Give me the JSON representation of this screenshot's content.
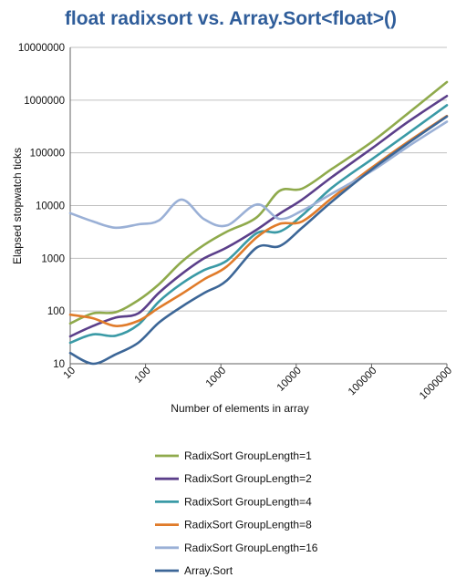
{
  "chart_data": {
    "type": "line",
    "title": "float radixsort vs. Array.Sort<float>()",
    "xlabel": "Number of elements in array",
    "ylabel": "Elapsed stopwatch ticks",
    "x_scale": "log",
    "y_scale": "log",
    "xlim": [
      10,
      1000000
    ],
    "ylim": [
      10,
      10000000
    ],
    "x_ticks": [
      "10",
      "100",
      "1000",
      "10000",
      "100000",
      "1000000"
    ],
    "y_ticks": [
      "10",
      "100",
      "1000",
      "10000",
      "100000",
      "1000000",
      "10000000"
    ],
    "grid": true,
    "legend_position": "bottom",
    "colors": {
      "title": "#2f5d9a",
      "grid": "#c0c0c0",
      "axis": "#606060"
    },
    "x": [
      10,
      20,
      40,
      80,
      150,
      300,
      600,
      1200,
      3000,
      6000,
      12000,
      30000,
      100000,
      300000,
      1000000
    ],
    "series": [
      {
        "name": "RadixSort GroupLength=1",
        "color": "#8faa4c",
        "values": [
          58,
          90,
          95,
          160,
          320,
          850,
          1800,
          3200,
          6000,
          19000,
          21000,
          50000,
          160000,
          550000,
          2200000
        ]
      },
      {
        "name": "RadixSort GroupLength=2",
        "color": "#5b3f8a",
        "values": [
          33,
          52,
          75,
          90,
          220,
          500,
          1000,
          1600,
          3500,
          7000,
          13000,
          35000,
          120000,
          380000,
          1200000
        ]
      },
      {
        "name": "RadixSort GroupLength=4",
        "color": "#3a9aa6",
        "values": [
          25,
          36,
          34,
          55,
          150,
          330,
          600,
          900,
          3000,
          3200,
          6500,
          22000,
          75000,
          230000,
          800000
        ]
      },
      {
        "name": "RadixSort GroupLength=8",
        "color": "#e07b2a",
        "values": [
          85,
          73,
          52,
          65,
          115,
          210,
          400,
          700,
          2500,
          4500,
          5000,
          14000,
          52000,
          160000,
          500000
        ]
      },
      {
        "name": "RadixSort GroupLength=16",
        "color": "#9ab0d6",
        "values": [
          7200,
          5000,
          3800,
          4400,
          5200,
          13000,
          5500,
          4200,
          10500,
          5600,
          8000,
          17000,
          45000,
          130000,
          390000
        ]
      },
      {
        "name": "Array.Sort",
        "color": "#3c6697",
        "values": [
          16,
          10,
          15,
          25,
          60,
          120,
          220,
          380,
          1600,
          1700,
          3800,
          12000,
          48000,
          150000,
          490000
        ]
      }
    ]
  }
}
